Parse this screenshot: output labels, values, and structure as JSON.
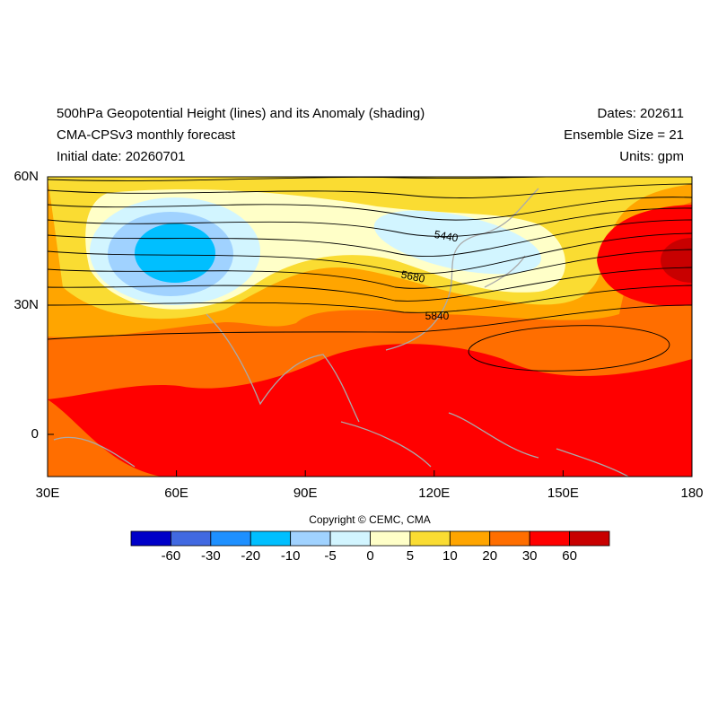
{
  "header": {
    "title": "500hPa Geopotential Height (lines) and its Anomaly (shading)",
    "subtitle": "CMA-CPSv3 monthly forecast",
    "initial_date": "Initial date: 20260701",
    "dates": "Dates: 202611",
    "ensemble": "Ensemble Size = 21",
    "units": "Units: gpm"
  },
  "map": {
    "lat_labels": [
      "60N",
      "30N",
      "0"
    ],
    "lon_labels": [
      "30E",
      "60E",
      "90E",
      "120E",
      "150E",
      "180"
    ],
    "contour_labels": [
      "5440",
      "5680",
      "5840"
    ]
  },
  "colorbar": {
    "labels": [
      "-60",
      "-30",
      "-20",
      "-10",
      "-5",
      "0",
      "5",
      "10",
      "20",
      "30",
      "60"
    ]
  },
  "footer": {
    "copyright": "Copyright © CEMC, CMA"
  }
}
